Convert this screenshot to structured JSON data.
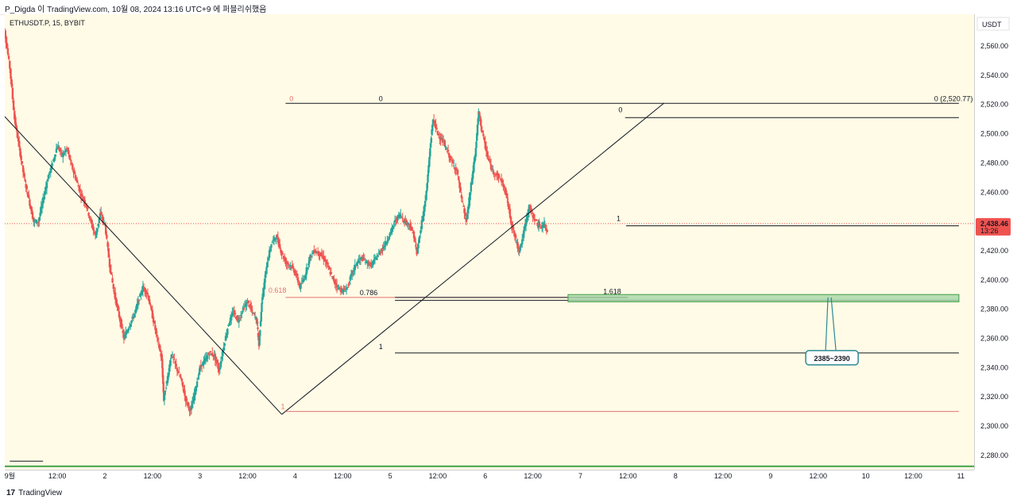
{
  "header": {
    "publisher": "P_Digda 이 TradingView.com, 10월 08, 2024 13:16 UTC+9 에 퍼블리쉬했음"
  },
  "footer": {
    "brand_logo": "17",
    "brand": "TradingView"
  },
  "colors": {
    "plot_bg": "#fffbe6",
    "up": "#26a69a",
    "down": "#ef5350",
    "fib_line": "#131722",
    "fib_red": "#e57373",
    "zone_fill": "#a5d6a7",
    "zone_border": "#43a047",
    "callout_border": "#2a8a97",
    "price_badge": "#ef5350"
  },
  "chart_data": {
    "type": "candlestick",
    "symbol": "ETHUSDT.P, 15, BYBIT",
    "currency": "USDT",
    "x_labels": [
      "9월",
      "12:00",
      "2",
      "12:00",
      "3",
      "12:00",
      "4",
      "12:00",
      "5",
      "12:00",
      "6",
      "12:00",
      "7",
      "12:00",
      "8",
      "12:00",
      "9",
      "12:00",
      "10",
      "12:00",
      "11"
    ],
    "y_ticks": [
      "2,560.00",
      "2,540.00",
      "2,520.00",
      "2,500.00",
      "2,480.00",
      "2,460.00",
      "2,440.00",
      "2,420.00",
      "2,400.00",
      "2,380.00",
      "2,360.00",
      "2,340.00",
      "2,320.00",
      "2,300.00",
      "2,280.00"
    ],
    "y_tick_values": [
      2560,
      2540,
      2520,
      2500,
      2480,
      2460,
      2440,
      2420,
      2400,
      2380,
      2360,
      2340,
      2320,
      2300,
      2280
    ],
    "ylim": [
      2272,
      2571
    ],
    "x_range_days": [
      0.9,
      10.98
    ],
    "last_price": {
      "value": 2438.46,
      "label": "2,438.46",
      "countdown": "13:26"
    },
    "price_path": [
      [
        0.9,
        2575
      ],
      [
        0.95,
        2568
      ],
      [
        1.0,
        2545
      ],
      [
        1.05,
        2510
      ],
      [
        1.1,
        2490
      ],
      [
        1.15,
        2470
      ],
      [
        1.2,
        2455
      ],
      [
        1.25,
        2440
      ],
      [
        1.3,
        2440
      ],
      [
        1.35,
        2455
      ],
      [
        1.4,
        2470
      ],
      [
        1.45,
        2480
      ],
      [
        1.5,
        2492
      ],
      [
        1.55,
        2485
      ],
      [
        1.6,
        2490
      ],
      [
        1.65,
        2478
      ],
      [
        1.7,
        2468
      ],
      [
        1.75,
        2458
      ],
      [
        1.8,
        2452
      ],
      [
        1.85,
        2440
      ],
      [
        1.9,
        2430
      ],
      [
        1.95,
        2445
      ],
      [
        2.0,
        2438
      ],
      [
        2.05,
        2410
      ],
      [
        2.1,
        2390
      ],
      [
        2.15,
        2375
      ],
      [
        2.2,
        2360
      ],
      [
        2.25,
        2368
      ],
      [
        2.3,
        2375
      ],
      [
        2.35,
        2385
      ],
      [
        2.4,
        2395
      ],
      [
        2.45,
        2390
      ],
      [
        2.5,
        2375
      ],
      [
        2.55,
        2360
      ],
      [
        2.6,
        2345
      ],
      [
        2.62,
        2318
      ],
      [
        2.65,
        2330
      ],
      [
        2.7,
        2350
      ],
      [
        2.75,
        2340
      ],
      [
        2.8,
        2332
      ],
      [
        2.85,
        2318
      ],
      [
        2.9,
        2310
      ],
      [
        2.95,
        2325
      ],
      [
        3.0,
        2340
      ],
      [
        3.05,
        2345
      ],
      [
        3.1,
        2350
      ],
      [
        3.15,
        2348
      ],
      [
        3.2,
        2338
      ],
      [
        3.25,
        2355
      ],
      [
        3.3,
        2370
      ],
      [
        3.35,
        2378
      ],
      [
        3.4,
        2372
      ],
      [
        3.45,
        2380
      ],
      [
        3.5,
        2385
      ],
      [
        3.55,
        2378
      ],
      [
        3.6,
        2372
      ],
      [
        3.62,
        2355
      ],
      [
        3.65,
        2385
      ],
      [
        3.7,
        2410
      ],
      [
        3.75,
        2425
      ],
      [
        3.8,
        2430
      ],
      [
        3.85,
        2420
      ],
      [
        3.9,
        2412
      ],
      [
        3.95,
        2410
      ],
      [
        4.0,
        2405
      ],
      [
        4.05,
        2395
      ],
      [
        4.1,
        2402
      ],
      [
        4.15,
        2415
      ],
      [
        4.2,
        2420
      ],
      [
        4.25,
        2418
      ],
      [
        4.3,
        2415
      ],
      [
        4.35,
        2408
      ],
      [
        4.4,
        2400
      ],
      [
        4.45,
        2395
      ],
      [
        4.5,
        2392
      ],
      [
        4.55,
        2395
      ],
      [
        4.6,
        2405
      ],
      [
        4.65,
        2412
      ],
      [
        4.7,
        2415
      ],
      [
        4.75,
        2412
      ],
      [
        4.8,
        2410
      ],
      [
        4.85,
        2415
      ],
      [
        4.9,
        2420
      ],
      [
        4.95,
        2425
      ],
      [
        5.0,
        2432
      ],
      [
        5.05,
        2440
      ],
      [
        5.1,
        2445
      ],
      [
        5.15,
        2440
      ],
      [
        5.2,
        2438
      ],
      [
        5.25,
        2430
      ],
      [
        5.28,
        2418
      ],
      [
        5.32,
        2435
      ],
      [
        5.38,
        2460
      ],
      [
        5.42,
        2490
      ],
      [
        5.45,
        2510
      ],
      [
        5.5,
        2500
      ],
      [
        5.55,
        2495
      ],
      [
        5.6,
        2488
      ],
      [
        5.65,
        2480
      ],
      [
        5.7,
        2475
      ],
      [
        5.75,
        2455
      ],
      [
        5.8,
        2440
      ],
      [
        5.85,
        2465
      ],
      [
        5.9,
        2490
      ],
      [
        5.93,
        2515
      ],
      [
        5.97,
        2500
      ],
      [
        6.02,
        2485
      ],
      [
        6.07,
        2475
      ],
      [
        6.12,
        2472
      ],
      [
        6.17,
        2468
      ],
      [
        6.22,
        2458
      ],
      [
        6.27,
        2440
      ],
      [
        6.3,
        2432
      ],
      [
        6.35,
        2420
      ],
      [
        6.38,
        2425
      ],
      [
        6.42,
        2438
      ],
      [
        6.46,
        2450
      ],
      [
        6.5,
        2444
      ],
      [
        6.55,
        2438
      ],
      [
        6.58,
        2436
      ],
      [
        6.62,
        2438
      ],
      [
        6.65,
        2434
      ]
    ],
    "annotations": {
      "fib_levels": [
        {
          "label": "0",
          "value": 2520.77,
          "color": "red"
        },
        {
          "label": "0",
          "value": 2520.77
        },
        {
          "label": "0 (2,520.77)",
          "value": 2520.77
        },
        {
          "label": "0",
          "value": 2511
        },
        {
          "label": "0.618",
          "value": 2388,
          "color": "red"
        },
        {
          "label": "0.786",
          "value": 2388
        },
        {
          "label": "1.618",
          "value": 2386
        },
        {
          "label": "1",
          "value": 2350
        },
        {
          "label": "1",
          "value": 2437
        },
        {
          "label": "1",
          "value": 2310,
          "color": "red"
        }
      ],
      "target_zone": {
        "low": 2385,
        "high": 2390,
        "label": "2385~2390"
      }
    }
  }
}
